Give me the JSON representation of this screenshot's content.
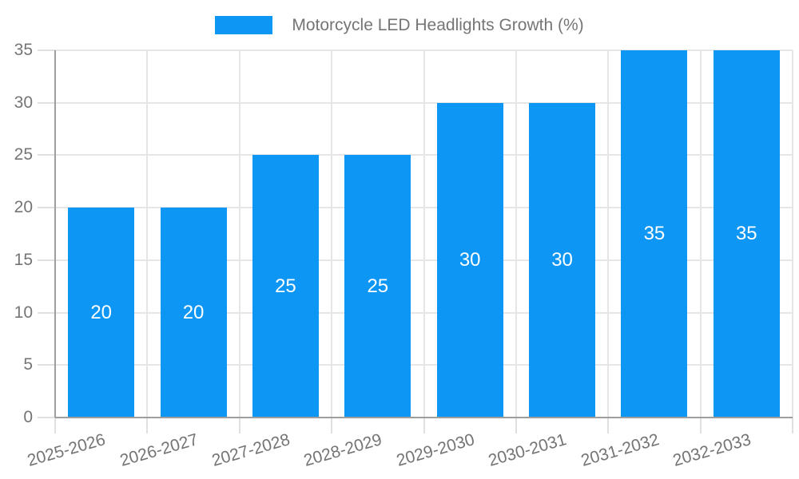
{
  "legend": {
    "label": "Motorcycle LED Headlights Growth (%)"
  },
  "colors": {
    "bar": "#0d96f3",
    "grid_line": "#e6e6e6",
    "tick_mark": "#e0e0e0",
    "axis_line": "#9e9e9e",
    "tick_text": "#757575",
    "value_label": "#ffffff",
    "background": "#ffffff"
  },
  "chart_data": {
    "type": "bar",
    "title": "Motorcycle LED Headlights Growth (%)",
    "categories": [
      "2025-2026",
      "2026-2027",
      "2027-2028",
      "2028-2029",
      "2029-2030",
      "2030-2031",
      "2031-2032",
      "2032-2033"
    ],
    "values": [
      20,
      20,
      25,
      25,
      30,
      30,
      35,
      35
    ],
    "xlabel": "",
    "ylabel": "",
    "ylim": [
      0,
      35
    ],
    "yticks": [
      0,
      5,
      10,
      15,
      20,
      25,
      30,
      35
    ],
    "grid": true,
    "legend_position": "top-center",
    "value_labels_position": "inside-center",
    "x_tick_label_rotation_deg": -16
  }
}
